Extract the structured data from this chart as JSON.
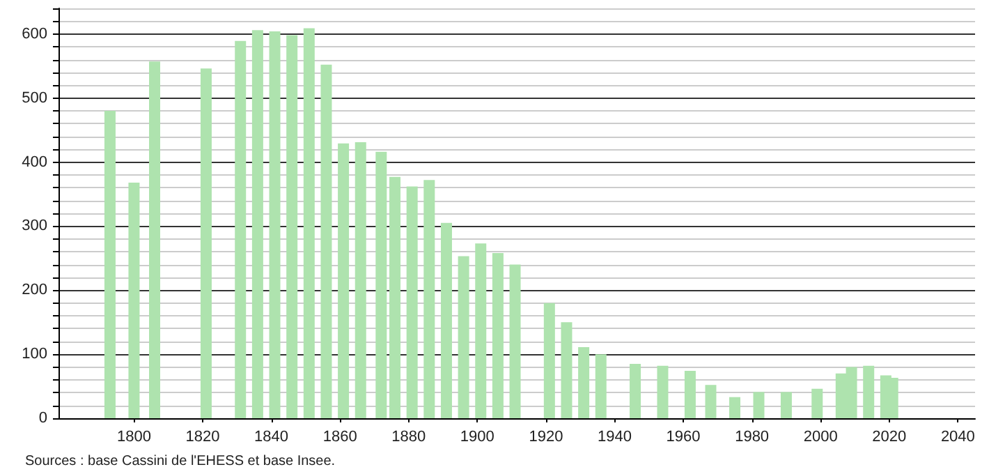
{
  "chart_data": {
    "type": "bar",
    "x": [
      1793,
      1800,
      1806,
      1821,
      1831,
      1836,
      1841,
      1846,
      1851,
      1856,
      1861,
      1866,
      1872,
      1876,
      1881,
      1886,
      1891,
      1896,
      1901,
      1906,
      1911,
      1921,
      1926,
      1931,
      1936,
      1946,
      1954,
      1962,
      1968,
      1975,
      1982,
      1990,
      1999,
      2006,
      2009,
      2014,
      2019,
      2021
    ],
    "values": [
      480,
      368,
      557,
      546,
      589,
      606,
      604,
      598,
      609,
      552,
      429,
      431,
      416,
      377,
      362,
      372,
      305,
      253,
      273,
      258,
      240,
      180,
      150,
      111,
      100,
      85,
      82,
      74,
      52,
      33,
      41,
      41,
      46,
      70,
      80,
      82,
      67,
      63
    ],
    "color": "#aee3ae",
    "xlim": [
      1778,
      2045
    ],
    "xticks": [
      1800,
      1820,
      1840,
      1860,
      1880,
      1900,
      1920,
      1940,
      1960,
      1980,
      2000,
      2020,
      2040
    ],
    "ylim": [
      0,
      640
    ],
    "yticks": [
      0,
      {
        "value": 20,
        "label": null
      },
      {
        "value": 40,
        "label": null
      },
      {
        "value": 60,
        "label": null
      },
      {
        "value": 80,
        "label": null
      },
      100,
      {
        "value": 120,
        "label": null
      },
      {
        "value": 140,
        "label": null
      },
      {
        "value": 160,
        "label": null
      },
      {
        "value": 180,
        "label": null
      },
      200,
      {
        "value": 220,
        "label": null
      },
      {
        "value": 240,
        "label": null
      },
      {
        "value": 260,
        "label": null
      },
      {
        "value": 280,
        "label": null
      },
      300,
      {
        "value": 320,
        "label": null
      },
      {
        "value": 340,
        "label": null
      },
      {
        "value": 360,
        "label": null
      },
      {
        "value": 380,
        "label": null
      },
      400,
      {
        "value": 420,
        "label": null
      },
      {
        "value": 440,
        "label": null
      },
      {
        "value": 460,
        "label": null
      },
      {
        "value": 480,
        "label": null
      },
      500,
      {
        "value": 520,
        "label": null
      },
      {
        "value": 540,
        "label": null
      },
      {
        "value": 560,
        "label": null
      },
      {
        "value": 580,
        "label": null
      },
      600,
      {
        "value": 620,
        "label": null
      },
      {
        "value": 640,
        "label": null
      }
    ],
    "grid": "y",
    "annotations": [
      "Sources : base Cassini de l'EHESS et base Insee."
    ]
  }
}
